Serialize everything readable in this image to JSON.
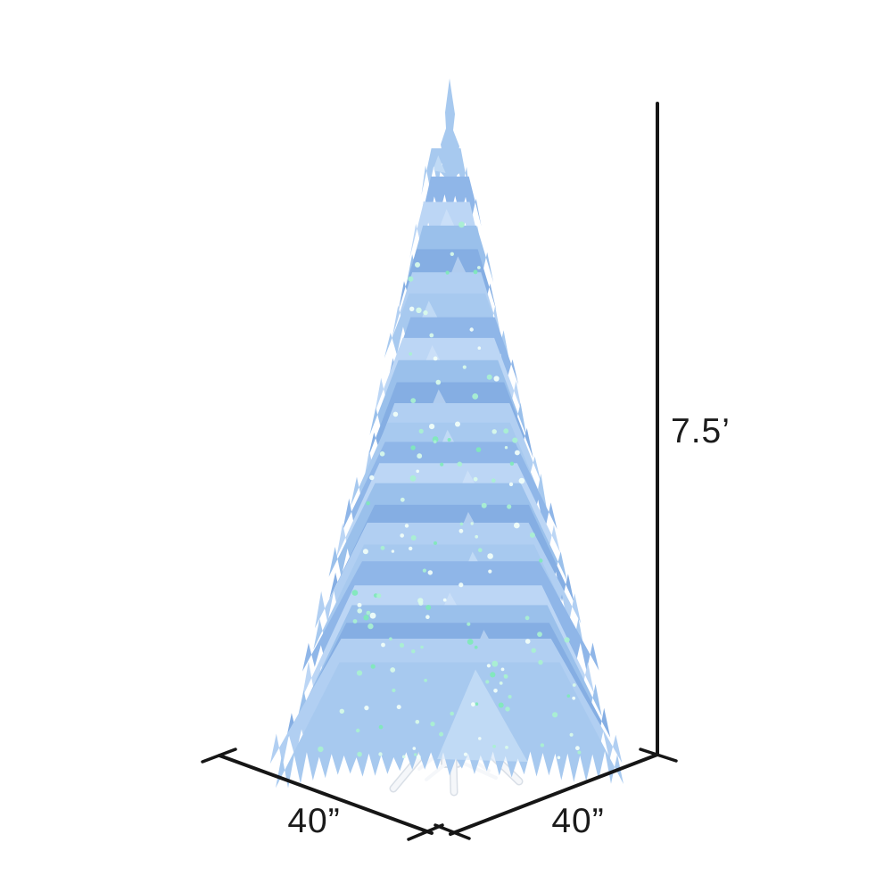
{
  "diagram": {
    "title": "Christmas tree dimension diagram",
    "labels": {
      "height": "7.5’",
      "width": "40”",
      "depth": "40”"
    },
    "line_color": "#161616",
    "text_color": "#1b1b1b",
    "background_color": "#ffffff"
  },
  "tree": {
    "description": "slim sky blue artificial fir tree with lights on white stand",
    "foliage_palette": [
      "#a7c9ef",
      "#8fb6e8",
      "#bcd6f5",
      "#9ac0eb",
      "#85aee3",
      "#b1cff2"
    ],
    "highlight_color": "#d6e7fa",
    "light_colors": [
      "#7fe9b8",
      "#d9fbe9",
      "#a9f1d0",
      "#f2fff8"
    ],
    "stand_fill": "#f5f7fa",
    "stand_stroke": "#d9dfe7"
  }
}
